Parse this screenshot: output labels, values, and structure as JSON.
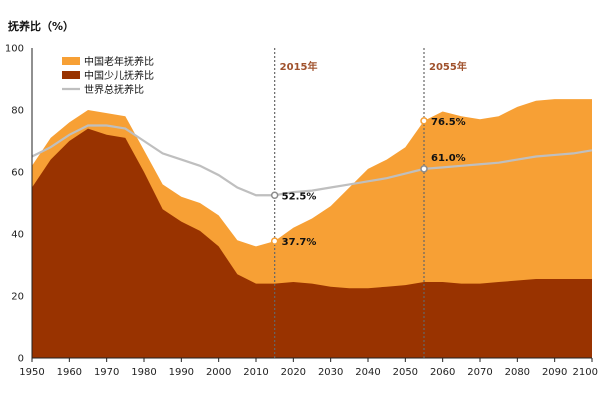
{
  "chart_data": {
    "type": "area",
    "title": "抚养比（%）",
    "xlabel": "",
    "ylabel": "",
    "xlim": [
      1950,
      2100
    ],
    "ylim": [
      0,
      100
    ],
    "x_ticks": [
      1950,
      1960,
      1970,
      1980,
      1990,
      2000,
      2010,
      2020,
      2030,
      2040,
      2050,
      2060,
      2070,
      2080,
      2090,
      2100
    ],
    "y_ticks": [
      0,
      20,
      40,
      60,
      80,
      100
    ],
    "grid": false,
    "legend_position": "top-left",
    "series": [
      {
        "name": "中国老年抚养比",
        "kind": "stacked-area-total",
        "color": "#F7A035",
        "x": [
          1950,
          1955,
          1960,
          1965,
          1970,
          1975,
          1980,
          1985,
          1990,
          1995,
          2000,
          2005,
          2010,
          2015,
          2020,
          2025,
          2030,
          2035,
          2040,
          2045,
          2050,
          2055,
          2060,
          2065,
          2070,
          2075,
          2080,
          2085,
          2090,
          2095,
          2100
        ],
        "values": [
          62,
          71,
          76,
          80,
          79,
          78,
          67,
          56,
          52,
          50,
          46,
          38,
          36,
          37.7,
          42,
          45,
          49,
          55,
          61,
          64,
          68,
          76.5,
          79.5,
          78,
          77,
          78,
          81,
          83,
          83.5,
          83.5,
          83.5
        ]
      },
      {
        "name": "中国少儿抚养比",
        "kind": "stacked-area-base",
        "color": "#993300",
        "x": [
          1950,
          1955,
          1960,
          1965,
          1970,
          1975,
          1980,
          1985,
          1990,
          1995,
          2000,
          2005,
          2010,
          2015,
          2020,
          2025,
          2030,
          2035,
          2040,
          2045,
          2050,
          2055,
          2060,
          2065,
          2070,
          2075,
          2080,
          2085,
          2090,
          2095,
          2100
        ],
        "values": [
          55,
          64,
          70,
          74,
          72,
          71,
          60,
          48,
          44,
          41,
          36,
          27,
          24,
          24,
          24.5,
          24,
          23,
          22.5,
          22.5,
          23,
          23.5,
          24.5,
          24.5,
          24,
          24,
          24.5,
          25,
          25.5,
          25.5,
          25.5,
          25.5
        ]
      },
      {
        "name": "世界总抚养比",
        "kind": "line",
        "color": "#BFBFBF",
        "x": [
          1950,
          1955,
          1960,
          1965,
          1970,
          1975,
          1980,
          1985,
          1990,
          1995,
          2000,
          2005,
          2010,
          2015,
          2020,
          2025,
          2030,
          2035,
          2040,
          2045,
          2050,
          2055,
          2060,
          2065,
          2070,
          2075,
          2080,
          2085,
          2090,
          2095,
          2100
        ],
        "values": [
          65,
          68,
          72,
          75,
          75,
          74,
          70,
          66,
          64,
          62,
          59,
          55,
          52.5,
          52.5,
          53.5,
          54,
          55,
          56,
          57,
          58,
          59.5,
          61,
          61.5,
          62,
          62.5,
          63,
          64,
          65,
          65.5,
          66,
          67
        ]
      }
    ],
    "markers": [
      {
        "year": 2015,
        "label": "2015年"
      },
      {
        "year": 2055,
        "label": "2055年"
      }
    ],
    "annotations": [
      {
        "year": 2015,
        "value": 52.5,
        "label": "52.5%",
        "series": "世界总抚养比"
      },
      {
        "year": 2015,
        "value": 37.7,
        "label": "37.7%",
        "series": "中国老年抚养比"
      },
      {
        "year": 2055,
        "value": 76.5,
        "label": "76.5%",
        "series": "中国老年抚养比"
      },
      {
        "year": 2055,
        "value": 61.0,
        "label": "61.0%",
        "series": "世界总抚养比"
      }
    ]
  }
}
